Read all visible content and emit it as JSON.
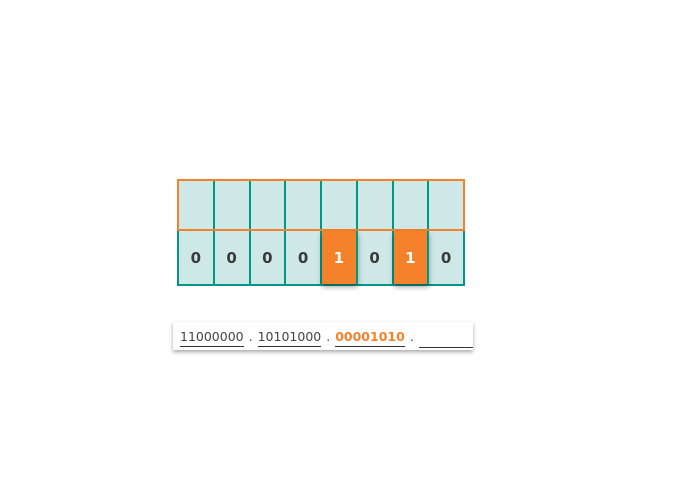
{
  "bits": [
    "0",
    "0",
    "0",
    "0",
    "1",
    "0",
    "1",
    "0"
  ],
  "highlighted_bits": [
    4,
    6
  ],
  "ip": {
    "octets": [
      "11000000",
      "10101000",
      "00001010",
      ""
    ],
    "separator": ".",
    "active_octet": 2
  },
  "colors": {
    "accent": "#f5822a",
    "teal": "#009688",
    "cell": "#cde8e6"
  }
}
